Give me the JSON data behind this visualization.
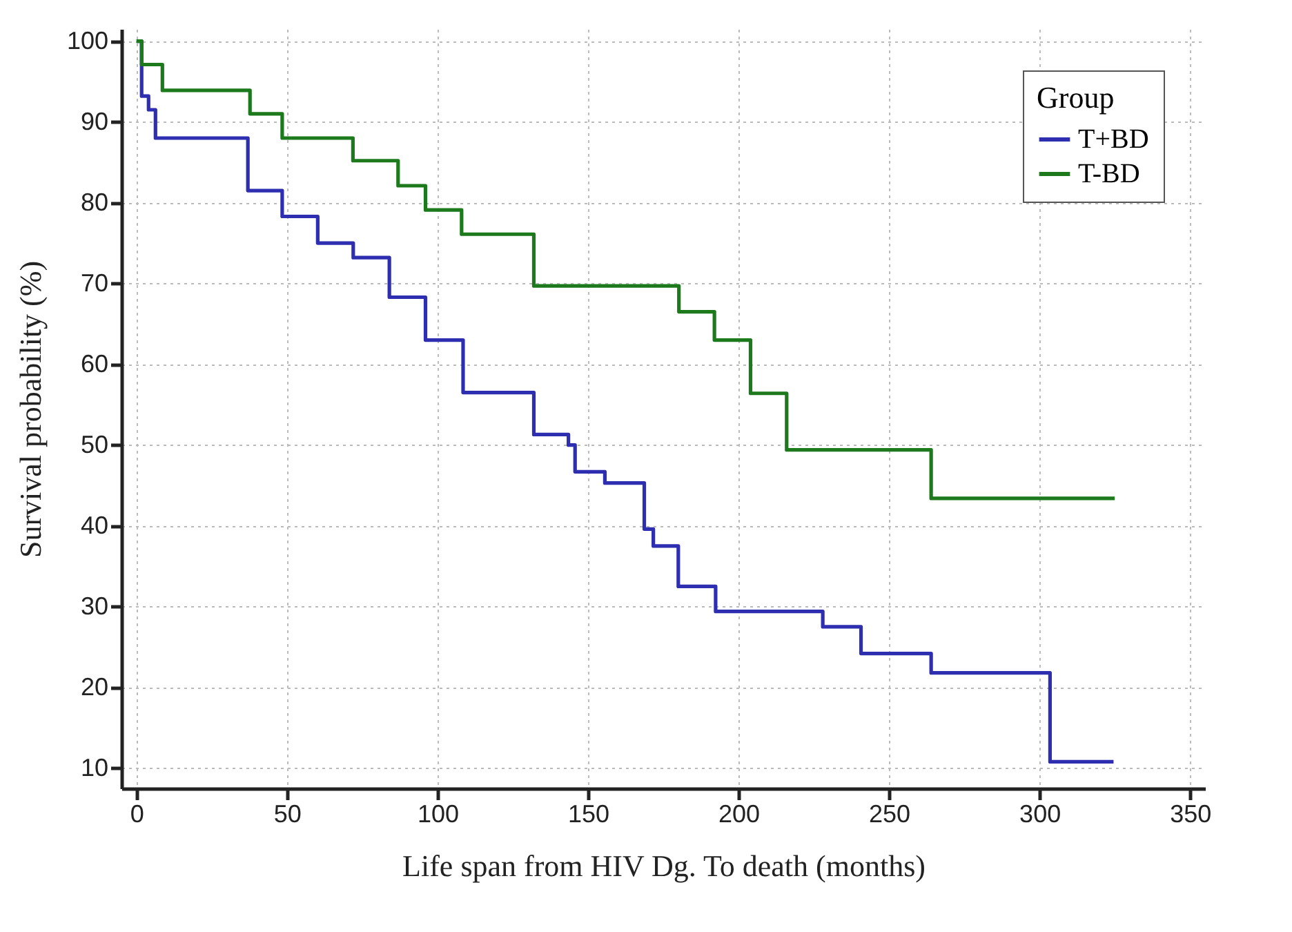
{
  "chart_data": {
    "type": "step",
    "xlabel": "Life span from HIV Dg. To death (months)",
    "ylabel": "Survival probability (%)",
    "legend_title": "Group",
    "xlim": [
      -5,
      355
    ],
    "ylim": [
      7.5,
      101.5
    ],
    "xticks": [
      0,
      50,
      100,
      150,
      200,
      250,
      300,
      350
    ],
    "yticks": [
      10,
      20,
      30,
      40,
      50,
      60,
      70,
      80,
      90,
      100
    ],
    "grid": true,
    "legend": "top right",
    "line_style": "solid",
    "series": [
      {
        "name": "T+BD",
        "color": "#2e2eb0",
        "x": [
          0,
          1.7,
          4,
          6.3,
          37,
          48.4,
          60.2,
          72,
          84,
          96,
          108.5,
          132,
          143.5,
          145.7,
          155.6,
          168.7,
          171.7,
          180,
          192.4,
          228,
          240.7,
          264,
          303.5,
          324.6
        ],
        "values": [
          100,
          93.2,
          91.5,
          88,
          81.5,
          78.3,
          75,
          73.2,
          68.3,
          63,
          56.5,
          51.3,
          50,
          46.7,
          45.3,
          39.6,
          37.5,
          32.5,
          29.4,
          27.5,
          24.2,
          21.8,
          10.8,
          10.8
        ]
      },
      {
        "name": "T-BD",
        "color": "#1c7a1c",
        "x": [
          0,
          1.7,
          8.6,
          37.7,
          48.4,
          71.9,
          86.9,
          96,
          108,
          132,
          180.2,
          192,
          204,
          216,
          264,
          325
        ],
        "values": [
          100,
          97.1,
          93.9,
          91,
          88,
          85.2,
          82.1,
          79.1,
          76.1,
          69.7,
          66.5,
          63,
          56.4,
          49.4,
          43.4,
          43.4
        ]
      }
    ]
  }
}
